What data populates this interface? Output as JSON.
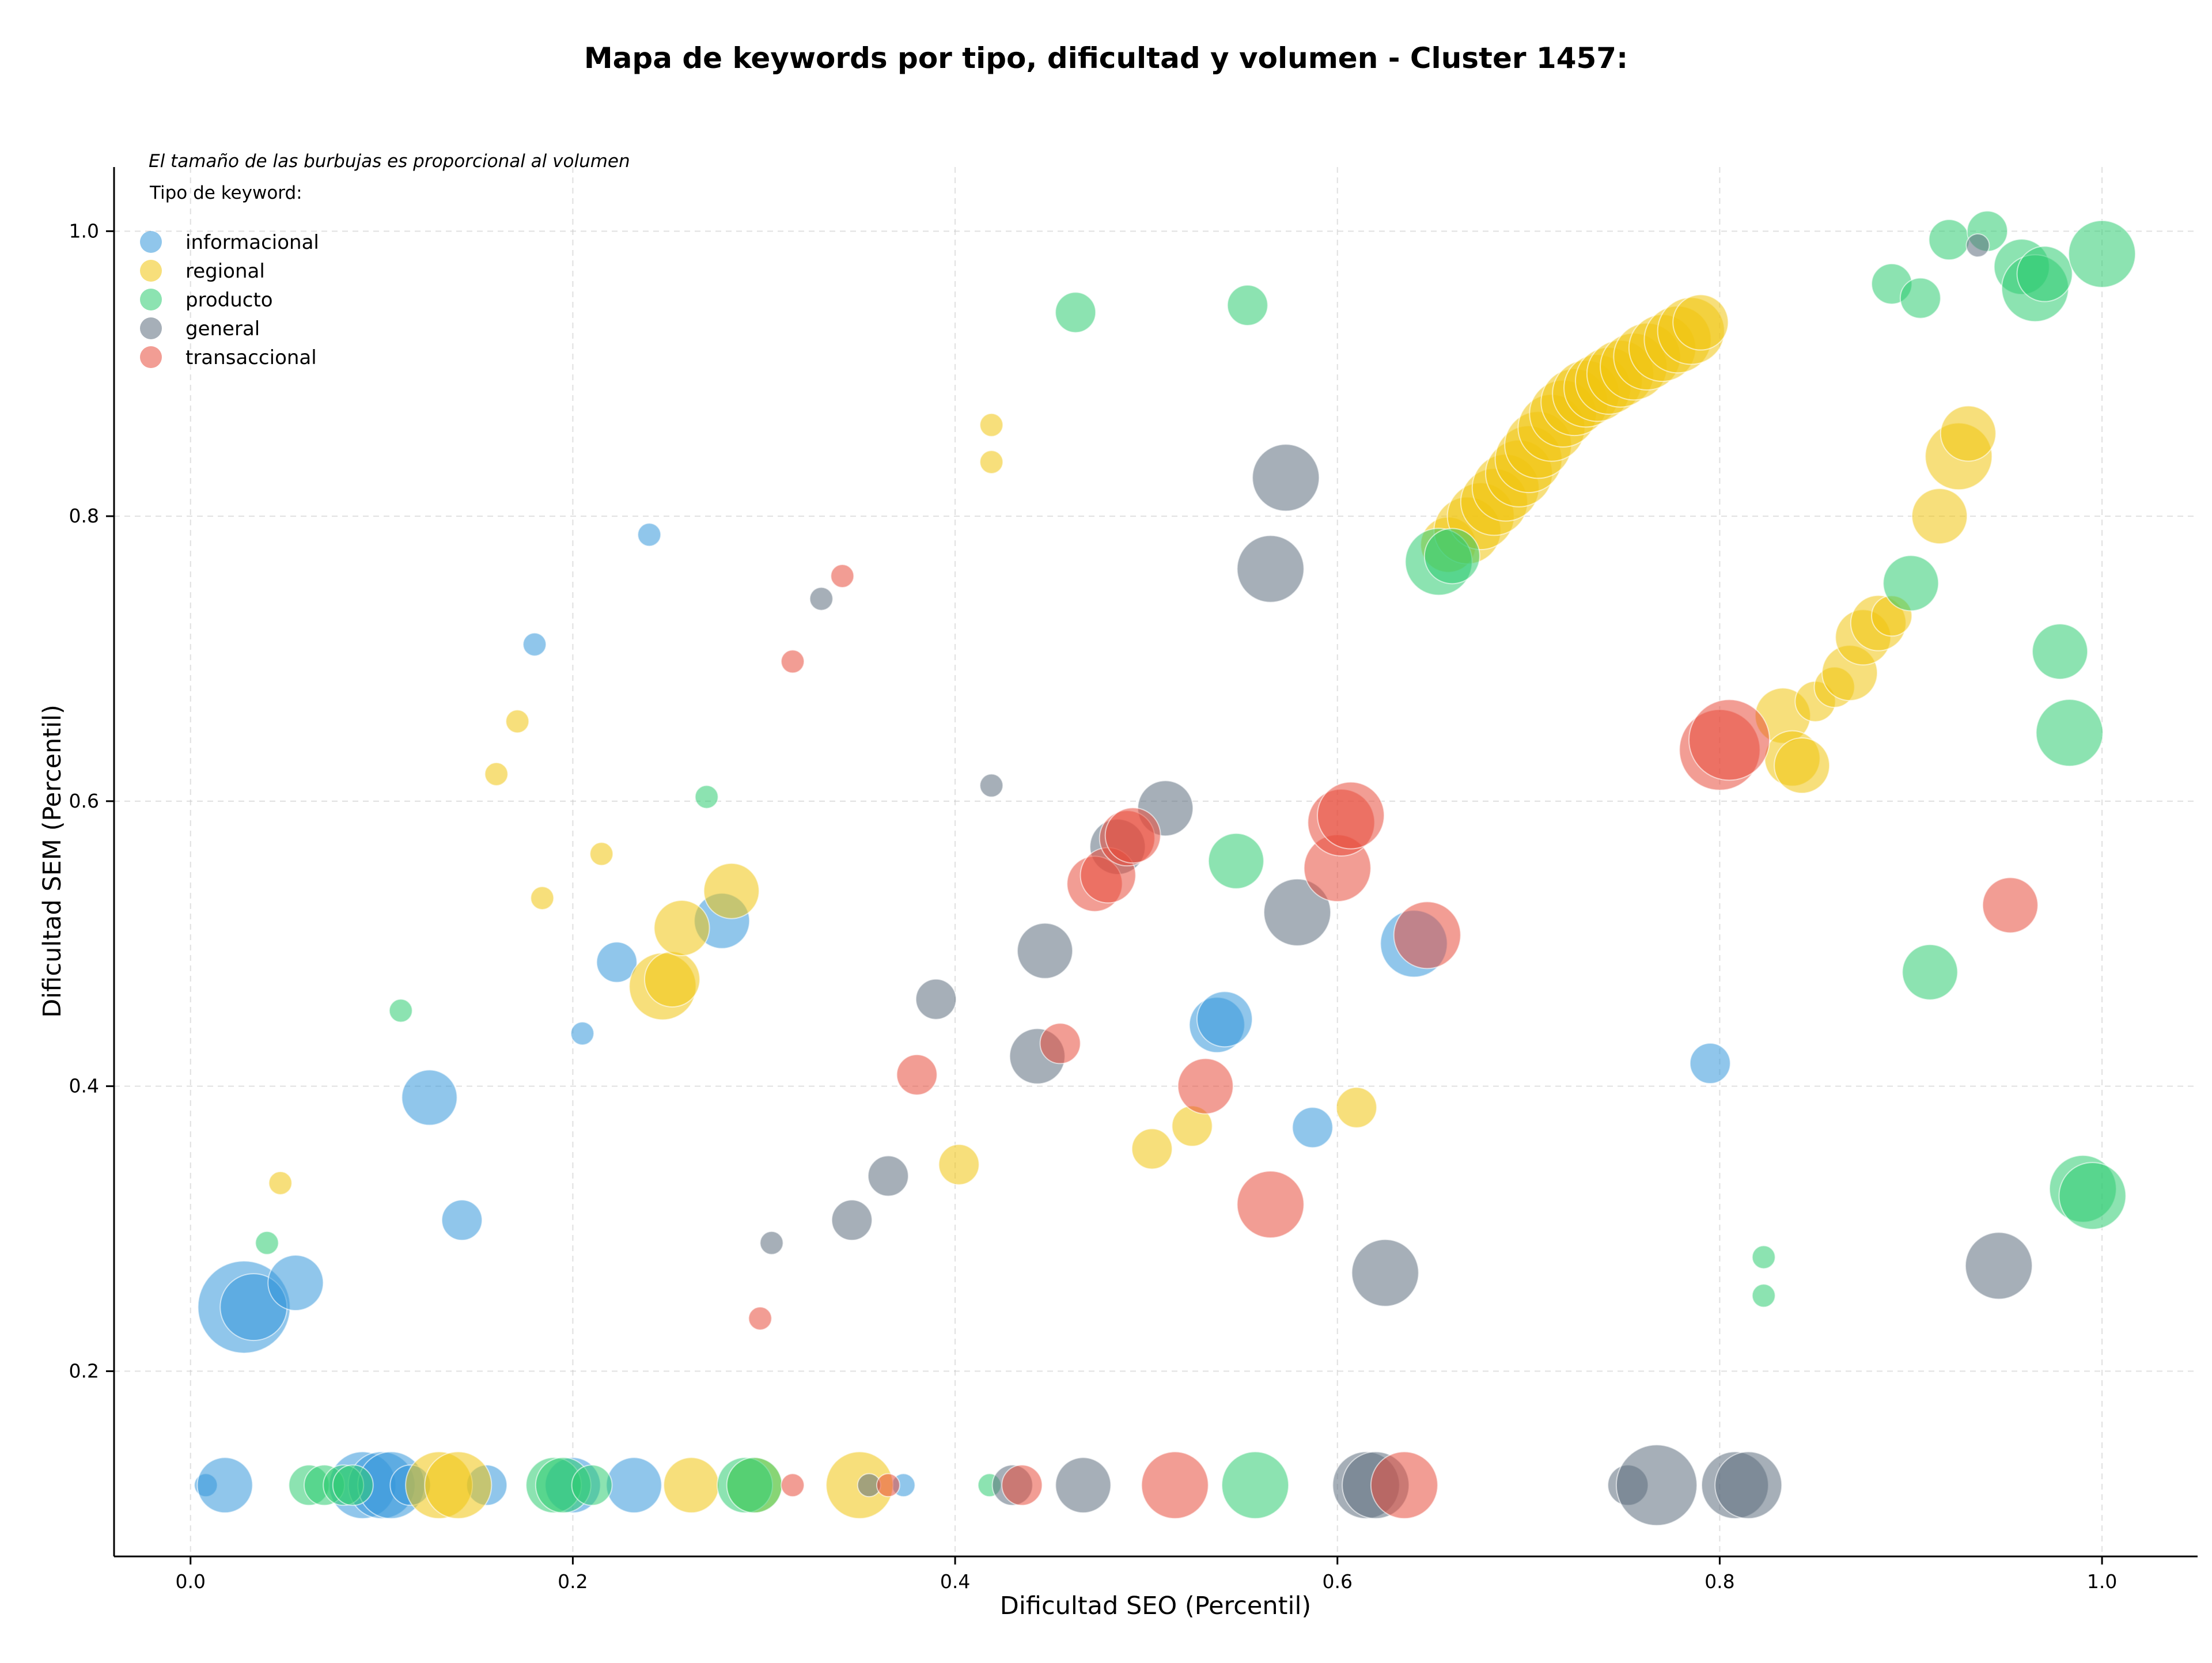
{
  "chart_data": {
    "type": "scatter",
    "title": "Mapa de keywords por tipo, dificultad y volumen - Cluster 1457:",
    "xlabel": "Dificultad SEO (Percentil)",
    "ylabel": "Dificultad SEM (Percentil)",
    "note": "El tamaño de las burbujas es proporcional al volumen",
    "legend_title": "Tipo de keyword:",
    "legend_placement": "top-left",
    "grid": true,
    "xlim": [
      -0.04,
      1.05
    ],
    "ylim": [
      0.07,
      1.045
    ],
    "xticks": [
      "0.0",
      "0.2",
      "0.4",
      "0.6",
      "0.8",
      "1.0"
    ],
    "yticks": [
      "0.2",
      "0.4",
      "0.6",
      "0.8",
      "1.0"
    ],
    "series": [
      {
        "name": "informacional",
        "color": "#3498db",
        "points": [
          [
            0.008,
            0.12,
            1
          ],
          [
            0.018,
            0.12,
            3
          ],
          [
            0.028,
            0.245,
            6
          ],
          [
            0.033,
            0.245,
            4
          ],
          [
            0.055,
            0.262,
            3
          ],
          [
            0.09,
            0.12,
            4
          ],
          [
            0.1,
            0.12,
            4
          ],
          [
            0.105,
            0.12,
            4
          ],
          [
            0.115,
            0.12,
            2
          ],
          [
            0.125,
            0.392,
            3
          ],
          [
            0.142,
            0.306,
            2
          ],
          [
            0.155,
            0.12,
            2
          ],
          [
            0.18,
            0.71,
            1
          ],
          [
            0.2,
            0.12,
            3
          ],
          [
            0.205,
            0.437,
            1
          ],
          [
            0.223,
            0.487,
            2
          ],
          [
            0.232,
            0.12,
            3
          ],
          [
            0.24,
            0.787,
            1
          ],
          [
            0.278,
            0.516,
            3
          ],
          [
            0.373,
            0.12,
            1
          ],
          [
            0.537,
            0.443,
            3
          ],
          [
            0.541,
            0.447,
            3
          ],
          [
            0.587,
            0.371,
            2
          ],
          [
            0.64,
            0.5,
            4
          ],
          [
            0.795,
            0.416,
            2
          ]
        ]
      },
      {
        "name": "regional",
        "color": "#f1c40f",
        "points": [
          [
            0.047,
            0.332,
            1
          ],
          [
            0.13,
            0.12,
            4
          ],
          [
            0.14,
            0.12,
            4
          ],
          [
            0.16,
            0.619,
            1
          ],
          [
            0.171,
            0.656,
            1
          ],
          [
            0.184,
            0.532,
            1
          ],
          [
            0.215,
            0.563,
            1
          ],
          [
            0.247,
            0.47,
            4
          ],
          [
            0.252,
            0.475,
            3
          ],
          [
            0.257,
            0.511,
            3
          ],
          [
            0.262,
            0.12,
            3
          ],
          [
            0.283,
            0.537,
            3
          ],
          [
            0.295,
            0.12,
            3
          ],
          [
            0.35,
            0.12,
            4
          ],
          [
            0.402,
            0.345,
            2
          ],
          [
            0.419,
            0.864,
            1
          ],
          [
            0.419,
            0.838,
            1
          ],
          [
            0.503,
            0.356,
            2
          ],
          [
            0.524,
            0.372,
            2
          ],
          [
            0.61,
            0.385,
            2
          ],
          [
            0.658,
            0.78,
            3
          ],
          [
            0.668,
            0.79,
            4
          ],
          [
            0.675,
            0.8,
            4
          ],
          [
            0.682,
            0.81,
            4
          ],
          [
            0.688,
            0.82,
            4
          ],
          [
            0.695,
            0.83,
            4
          ],
          [
            0.7,
            0.84,
            4
          ],
          [
            0.705,
            0.85,
            4
          ],
          [
            0.712,
            0.862,
            4
          ],
          [
            0.718,
            0.872,
            4
          ],
          [
            0.724,
            0.88,
            4
          ],
          [
            0.73,
            0.886,
            4
          ],
          [
            0.736,
            0.89,
            4
          ],
          [
            0.742,
            0.895,
            4
          ],
          [
            0.748,
            0.9,
            4
          ],
          [
            0.755,
            0.905,
            4
          ],
          [
            0.762,
            0.912,
            4
          ],
          [
            0.77,
            0.918,
            4
          ],
          [
            0.778,
            0.924,
            4
          ],
          [
            0.785,
            0.93,
            4
          ],
          [
            0.79,
            0.936,
            3
          ],
          [
            0.833,
            0.66,
            3
          ],
          [
            0.838,
            0.63,
            3
          ],
          [
            0.843,
            0.625,
            3
          ],
          [
            0.85,
            0.67,
            2
          ],
          [
            0.86,
            0.68,
            2
          ],
          [
            0.868,
            0.69,
            3
          ],
          [
            0.875,
            0.715,
            3
          ],
          [
            0.883,
            0.725,
            3
          ],
          [
            0.89,
            0.73,
            2
          ],
          [
            0.915,
            0.8,
            3
          ],
          [
            0.925,
            0.842,
            4
          ],
          [
            0.93,
            0.858,
            3
          ]
        ]
      },
      {
        "name": "producto",
        "color": "#2ecc71",
        "points": [
          [
            0.04,
            0.29,
            1
          ],
          [
            0.062,
            0.12,
            2
          ],
          [
            0.07,
            0.12,
            2
          ],
          [
            0.08,
            0.12,
            2
          ],
          [
            0.085,
            0.12,
            2
          ],
          [
            0.11,
            0.453,
            1
          ],
          [
            0.19,
            0.12,
            3
          ],
          [
            0.195,
            0.12,
            3
          ],
          [
            0.21,
            0.12,
            2
          ],
          [
            0.27,
            0.603,
            1
          ],
          [
            0.29,
            0.12,
            3
          ],
          [
            0.295,
            0.12,
            3
          ],
          [
            0.418,
            0.12,
            1
          ],
          [
            0.463,
            0.943,
            2
          ],
          [
            0.547,
            0.558,
            3
          ],
          [
            0.553,
            0.948,
            2
          ],
          [
            0.557,
            0.12,
            4
          ],
          [
            0.653,
            0.768,
            4
          ],
          [
            0.66,
            0.772,
            3
          ],
          [
            0.823,
            0.28,
            1
          ],
          [
            0.823,
            0.253,
            1
          ],
          [
            0.89,
            0.963,
            2
          ],
          [
            0.9,
            0.753,
            3
          ],
          [
            0.905,
            0.953,
            2
          ],
          [
            0.91,
            0.48,
            3
          ],
          [
            0.92,
            0.994,
            2
          ],
          [
            0.94,
            1.0,
            2
          ],
          [
            0.958,
            0.975,
            3
          ],
          [
            0.965,
            0.96,
            4
          ],
          [
            0.97,
            0.97,
            3
          ],
          [
            0.978,
            0.705,
            3
          ],
          [
            0.983,
            0.648,
            4
          ],
          [
            0.99,
            0.328,
            4
          ],
          [
            0.995,
            0.323,
            4
          ],
          [
            1.0,
            0.984,
            4
          ]
        ]
      },
      {
        "name": "general",
        "color": "#5d6d7e",
        "points": [
          [
            0.304,
            0.29,
            1
          ],
          [
            0.33,
            0.742,
            1
          ],
          [
            0.346,
            0.306,
            2
          ],
          [
            0.355,
            0.12,
            1
          ],
          [
            0.365,
            0.337,
            2
          ],
          [
            0.39,
            0.461,
            2
          ],
          [
            0.419,
            0.611,
            1
          ],
          [
            0.43,
            0.12,
            2
          ],
          [
            0.443,
            0.421,
            3
          ],
          [
            0.447,
            0.495,
            3
          ],
          [
            0.467,
            0.12,
            3
          ],
          [
            0.485,
            0.568,
            3
          ],
          [
            0.51,
            0.595,
            3
          ],
          [
            0.565,
            0.763,
            4
          ],
          [
            0.573,
            0.827,
            4
          ],
          [
            0.579,
            0.522,
            4
          ],
          [
            0.615,
            0.12,
            4
          ],
          [
            0.62,
            0.12,
            4
          ],
          [
            0.625,
            0.269,
            4
          ],
          [
            0.752,
            0.12,
            2
          ],
          [
            0.767,
            0.12,
            5
          ],
          [
            0.808,
            0.12,
            4
          ],
          [
            0.815,
            0.12,
            4
          ],
          [
            0.935,
            0.99,
            1
          ],
          [
            0.946,
            0.274,
            4
          ]
        ]
      },
      {
        "name": "transaccional",
        "color": "#e74c3c",
        "points": [
          [
            0.298,
            0.237,
            1
          ],
          [
            0.315,
            0.12,
            1
          ],
          [
            0.315,
            0.698,
            1
          ],
          [
            0.341,
            0.758,
            1
          ],
          [
            0.365,
            0.12,
            1
          ],
          [
            0.38,
            0.408,
            2
          ],
          [
            0.435,
            0.12,
            2
          ],
          [
            0.455,
            0.43,
            2
          ],
          [
            0.473,
            0.542,
            3
          ],
          [
            0.48,
            0.548,
            3
          ],
          [
            0.49,
            0.574,
            3
          ],
          [
            0.493,
            0.576,
            3
          ],
          [
            0.515,
            0.12,
            4
          ],
          [
            0.531,
            0.4,
            3
          ],
          [
            0.565,
            0.317,
            4
          ],
          [
            0.6,
            0.553,
            4
          ],
          [
            0.602,
            0.585,
            4
          ],
          [
            0.607,
            0.59,
            4
          ],
          [
            0.635,
            0.12,
            4
          ],
          [
            0.647,
            0.506,
            4
          ],
          [
            0.8,
            0.636,
            5
          ],
          [
            0.805,
            0.643,
            5
          ],
          [
            0.952,
            0.527,
            3
          ]
        ]
      }
    ]
  }
}
